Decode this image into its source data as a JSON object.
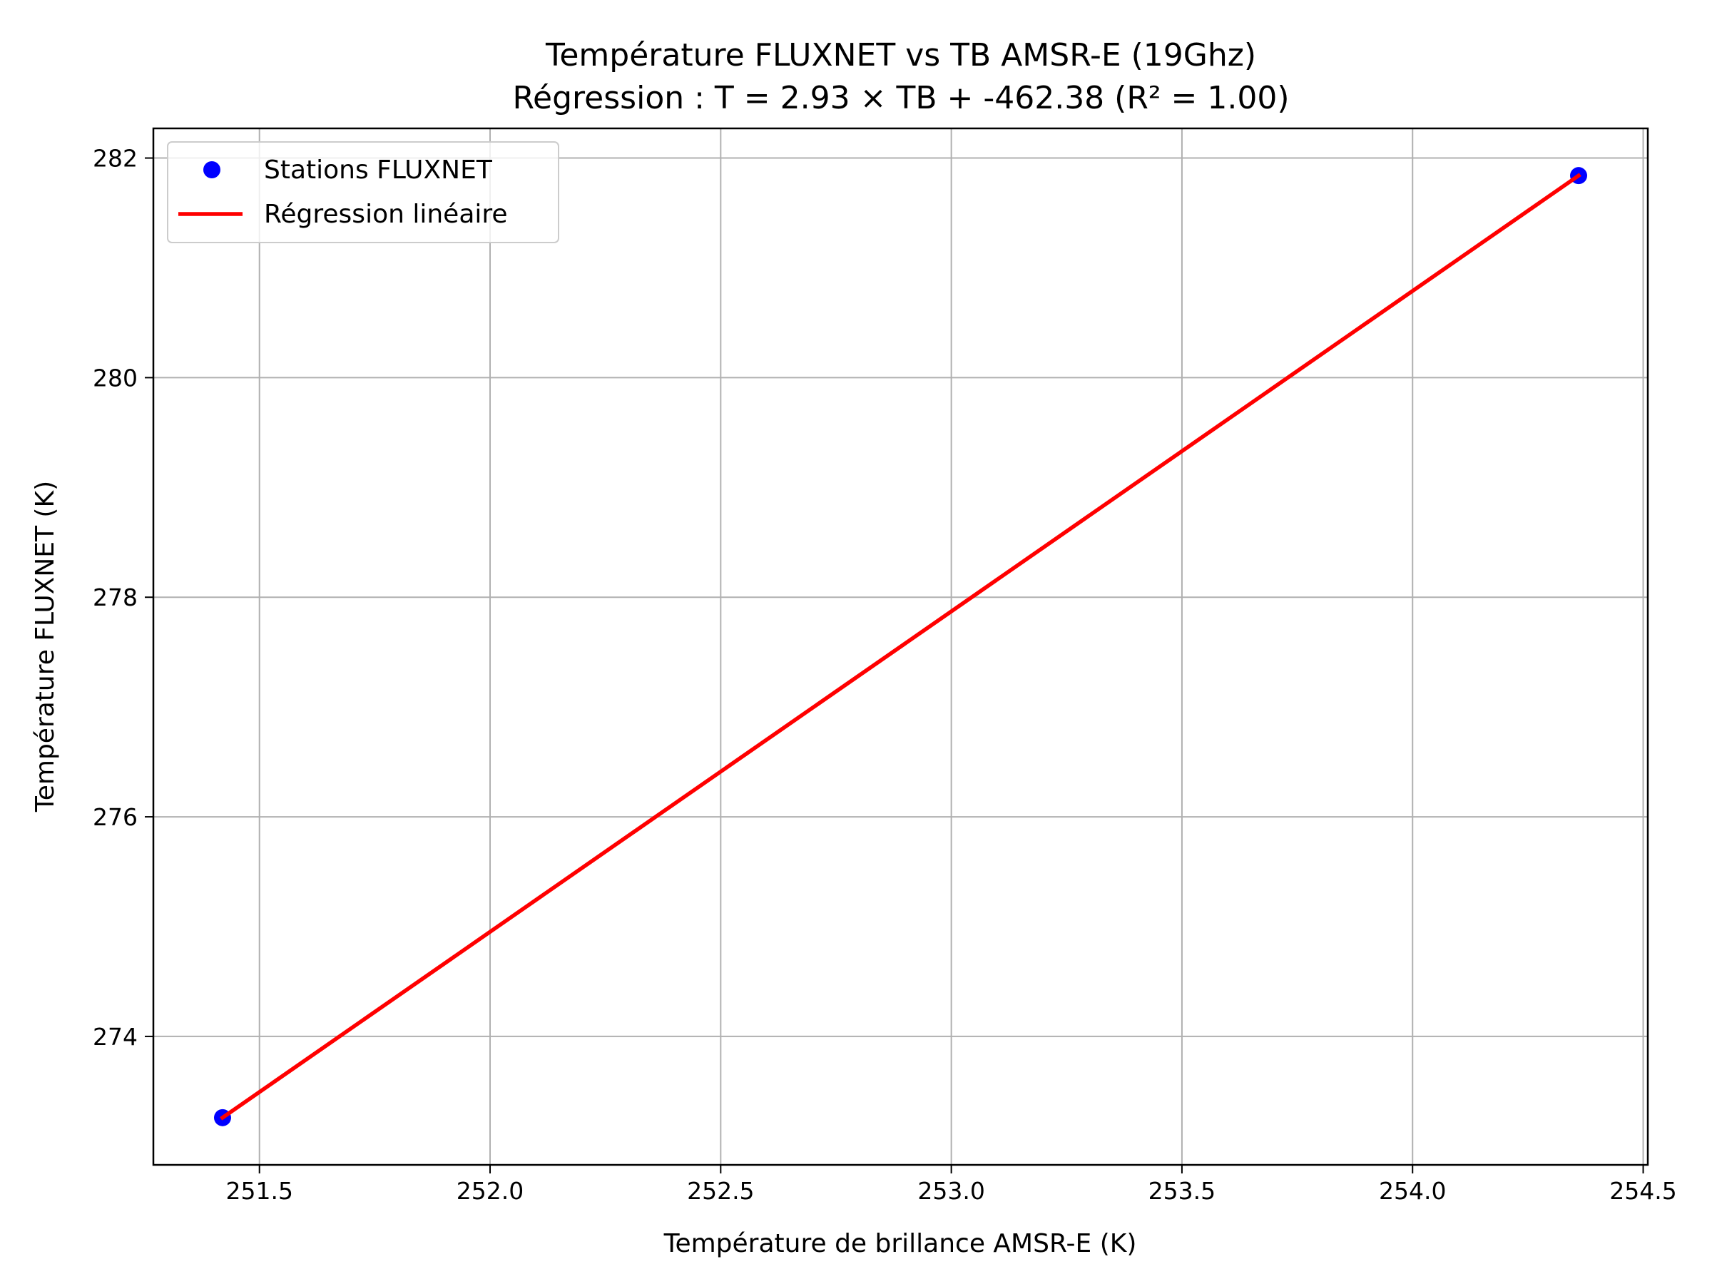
{
  "chart_data": {
    "type": "scatter",
    "title": "Température FLUXNET vs TB AMSR-E (19Ghz)",
    "subtitle": "Régression : T = 2.93 × TB + -462.38 (R² = 1.00)",
    "xlabel": "Température de brillance AMSR-E (K)",
    "ylabel": "Température FLUXNET (K)",
    "xlim": [
      251.27,
      254.51
    ],
    "ylim": [
      272.83,
      282.27
    ],
    "xticks": [
      251.5,
      252.0,
      252.5,
      253.0,
      253.5,
      254.0,
      254.5
    ],
    "xtick_labels": [
      "251.5",
      "252.0",
      "252.5",
      "253.0",
      "253.5",
      "254.0",
      "254.5"
    ],
    "yticks": [
      274,
      276,
      278,
      280,
      282
    ],
    "ytick_labels": [
      "274",
      "276",
      "278",
      "280",
      "282"
    ],
    "grid": true,
    "legend_position": "top-left",
    "series": [
      {
        "name": "Stations FLUXNET",
        "kind": "scatter",
        "color": "#0000ff",
        "points": [
          {
            "x": 251.42,
            "y": 273.26
          },
          {
            "x": 254.36,
            "y": 281.84
          }
        ]
      },
      {
        "name": "Régression linéaire",
        "kind": "line",
        "color": "#ff0000",
        "points": [
          {
            "x": 251.42,
            "y": 273.26
          },
          {
            "x": 254.36,
            "y": 281.84
          }
        ]
      }
    ]
  }
}
